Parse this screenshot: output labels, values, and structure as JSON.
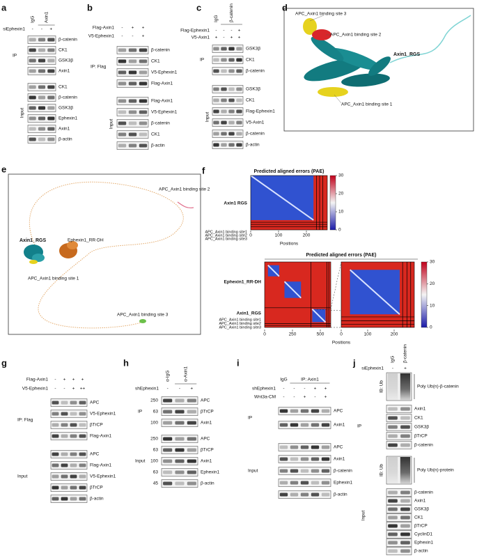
{
  "a": {
    "letter": "a",
    "lanes": [
      "IgG",
      "Axin1"
    ],
    "treatment": {
      "label": "siEphexin1",
      "signs": [
        "-",
        "-",
        "+"
      ]
    },
    "ip": {
      "label": "IP",
      "bands": [
        "β-catenin",
        "CK1",
        "GSK3β",
        "Axin1"
      ]
    },
    "input": {
      "label": "Input",
      "bands": [
        "CK1",
        "β-catenin",
        "GSK3β",
        "Ephexin1",
        "Axin1",
        "β-actin"
      ]
    }
  },
  "b": {
    "letter": "b",
    "treatments": [
      {
        "label": "Flag-Axin1",
        "signs": [
          "-",
          "+",
          "+"
        ]
      },
      {
        "label": "V5-Ephexin1",
        "signs": [
          "-",
          "-",
          "+"
        ]
      }
    ],
    "ip": {
      "label": "IP: Flag",
      "bands": [
        "β-catenin",
        "CK1",
        "V5-Ephexin1",
        "Flag-Axin1"
      ]
    },
    "input": {
      "label": "Input",
      "bands": [
        "Flag-Axin1",
        "V5-Ephexin1",
        "β-catenin",
        "CK1",
        "β-actin"
      ]
    }
  },
  "c": {
    "letter": "c",
    "lanes": [
      "IgG",
      "β-catenin"
    ],
    "treatments": [
      {
        "label": "Flag-Ephexin1",
        "signs": [
          "-",
          "-",
          "-",
          "+"
        ]
      },
      {
        "label": "V5-Axin1",
        "signs": [
          "+",
          "-",
          "+",
          "+"
        ]
      }
    ],
    "ip": {
      "label": "IP",
      "bands": [
        "GSK3β",
        "CK1",
        "β-catenin"
      ]
    },
    "input": {
      "label": "Input",
      "bands": [
        "GSK3β",
        "CK1",
        "Flag-Ephexin1",
        "V5-Axin1",
        "β-catenin",
        "β-actin"
      ]
    }
  },
  "d": {
    "letter": "d",
    "labels": [
      "APC_Axin1 binding site 3",
      "APC_Axin1 binding site 2",
      "Axin1_RGS",
      "APC_Axin1 binding site 1"
    ]
  },
  "e": {
    "letter": "e",
    "labels": [
      "APC_Axin1 binding site 2",
      "Axin1_RGS",
      "Ephexin1_RR-DH",
      "APC_Axin1 binding site 1",
      "APC_Axin1 binding site 3"
    ]
  },
  "f": {
    "letter": "f",
    "top": {
      "title": "Predicted aligned errors (PAE)",
      "rows": [
        "Axin1 RGS",
        "APC_Axin1 binding site1",
        "APC_Axin1 binding site2",
        "APC_Axin1 binding site3"
      ],
      "xticks": [
        0,
        100,
        200
      ],
      "colorbar": [
        30,
        20,
        10,
        0
      ],
      "xlabel": "Positions"
    },
    "bottom": {
      "title": "Predicted aligned errors (PAE)",
      "rows": [
        "Ephexin1_RR-DH",
        "Axin1_RGS",
        "APC_Axin1 binding site1",
        "APC_Axin1 binding site2",
        "APC_Axin1 binding site3"
      ],
      "xticks_left": [
        0,
        250,
        500
      ],
      "xticks_right": [
        0,
        100,
        200
      ],
      "colorbar": [
        30,
        20,
        10,
        0
      ],
      "xlabel": "Positions"
    }
  },
  "g": {
    "letter": "g",
    "treatments": [
      {
        "label": "Flag-Axin1",
        "signs": [
          "-",
          "+",
          "+",
          "+"
        ]
      },
      {
        "label": "V5-Ephexin1",
        "signs": [
          "-",
          "-",
          "+",
          "++"
        ]
      }
    ],
    "ip": {
      "label": "IP: Flag",
      "bands": [
        "APC",
        "V5-Ephexin1",
        "βTrCP",
        "Flag-Axin1"
      ]
    },
    "input": {
      "label": "Input",
      "bands": [
        "APC",
        "Flag-Axin1",
        "V5-Ephexin1",
        "βTrCP",
        "β-actin"
      ]
    }
  },
  "h": {
    "letter": "h",
    "lanes": [
      "α-IgG",
      "α-Axin1"
    ],
    "treatment": {
      "label": "shEphexin1",
      "signs": [
        "-",
        "-",
        "+"
      ]
    },
    "ip": {
      "label": "IP",
      "bands": [
        {
          "marker": 250,
          "name": "APC"
        },
        {
          "marker": 63,
          "name": "βTrCP"
        },
        {
          "marker": 100,
          "name": "Axin1"
        }
      ]
    },
    "input": {
      "label": "Input",
      "bands": [
        {
          "marker": 250,
          "name": "APC"
        },
        {
          "marker": 63,
          "name": "βTrCP"
        },
        {
          "marker": 100,
          "name": "Axin1"
        },
        {
          "marker": 63,
          "name": "Ephexin1"
        },
        {
          "marker": 45,
          "name": "β-actin"
        }
      ]
    }
  },
  "i": {
    "letter": "i",
    "lanes": [
      "IgG",
      "IP: Axin1"
    ],
    "treatments": [
      {
        "label": "shEphexin1",
        "signs": [
          "-",
          "-",
          "-",
          "+",
          "+"
        ]
      },
      {
        "label": "Wnt3a-CM",
        "signs": [
          "-",
          "-",
          "+",
          "-",
          "+"
        ]
      }
    ],
    "ip": {
      "label": "IP",
      "bands": [
        "APC",
        "Axin1"
      ]
    },
    "input": {
      "label": "Input",
      "bands": [
        "APC",
        "Axin1",
        "β-catenin",
        "Ephexin1",
        "β-actin"
      ]
    }
  },
  "j": {
    "letter": "j",
    "lanes": [
      "IgG",
      "β-catenin"
    ],
    "treatment": {
      "label": "siEphexin1",
      "signs": [
        "-",
        "+"
      ]
    },
    "ip": {
      "label": "IP",
      "ib": "IB: Ub",
      "smear": "Poly Ub(n)-β-catenin",
      "bands": [
        "Axin1",
        "CK1",
        "GSK3β",
        "βTrCP",
        "β-catenin"
      ]
    },
    "input": {
      "label": "Input",
      "ib": "IB: Ub",
      "smear": "Poly Ub(n)-protein",
      "bands": [
        "β-catenin",
        "Axin1",
        "GSK3β",
        "CK1",
        "βTrCP",
        "CyclinD1",
        "Ephexin1",
        "β-actin"
      ]
    }
  }
}
